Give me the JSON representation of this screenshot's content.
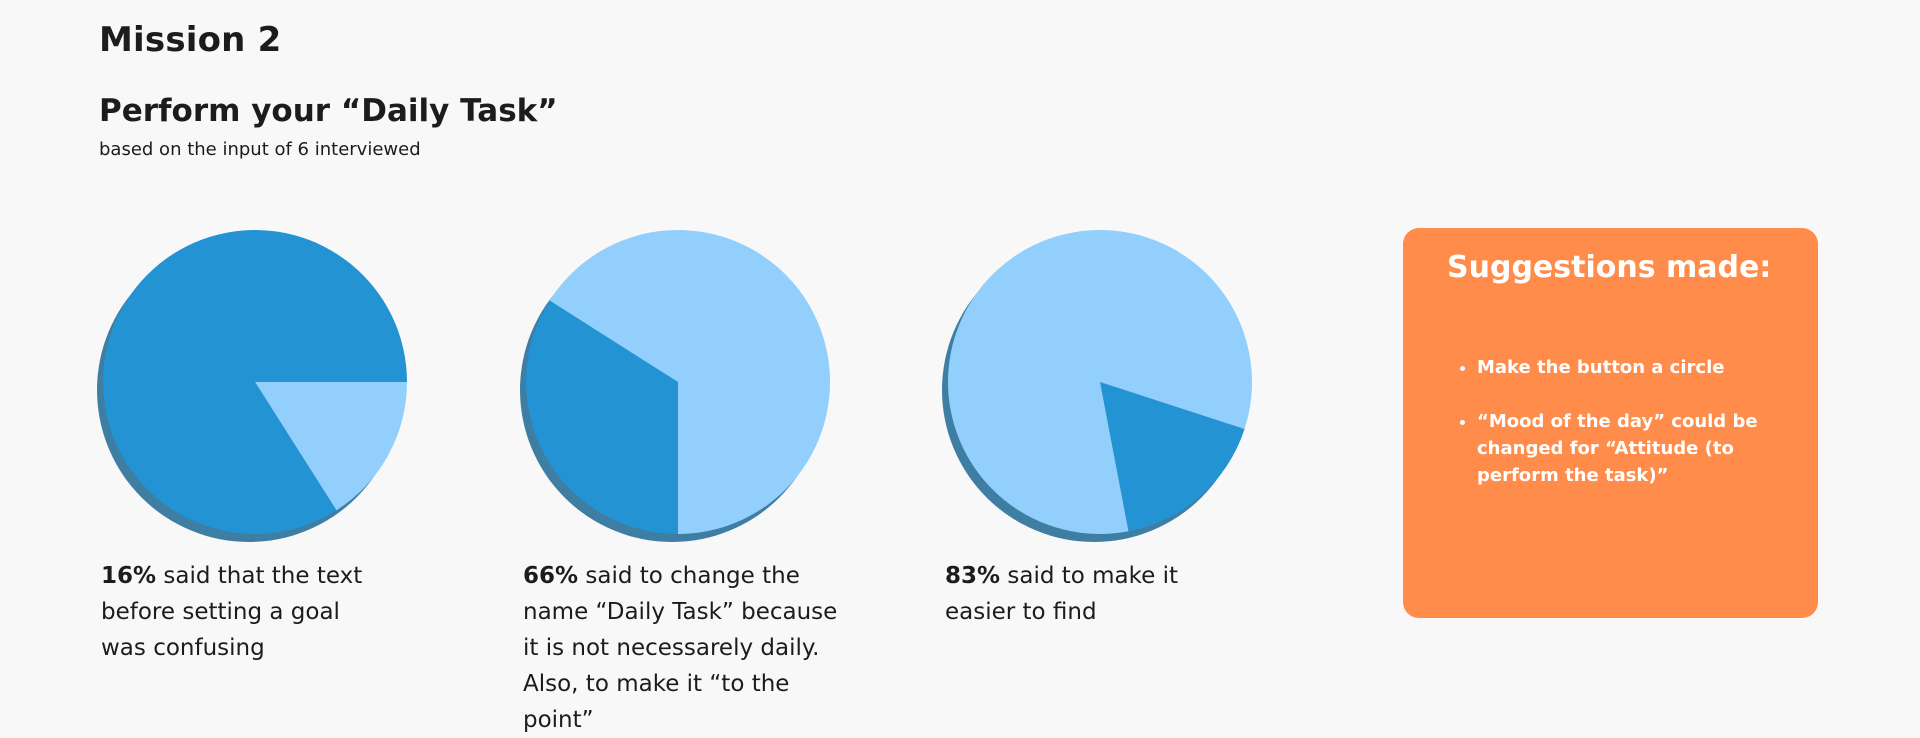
{
  "header": {
    "mission": "Mission 2",
    "section_title": "Perform your “Daily Task”",
    "subtitle": "based on the input of 6 interviewed"
  },
  "colors": {
    "primary_slice": "#2393d4",
    "secondary_slice": "#93cffc",
    "shadow": "#3f7ea3",
    "card": "#ff8c4a"
  },
  "chart_data": [
    {
      "type": "pie",
      "slices": [
        {
          "value": 16,
          "color": "#93cffc"
        },
        {
          "value": 84,
          "color": "#2393d4"
        }
      ]
    },
    {
      "type": "pie",
      "slices": [
        {
          "value": 34,
          "color": "#2393d4"
        },
        {
          "value": 66,
          "color": "#93cffc"
        }
      ]
    },
    {
      "type": "pie",
      "slices": [
        {
          "value": 17,
          "color": "#2393d4"
        },
        {
          "value": 83,
          "color": "#93cffc"
        }
      ]
    }
  ],
  "descriptions": [
    {
      "pct": "16%",
      "text": " said that the text before setting a goal was confusing"
    },
    {
      "pct": "66%",
      "text": " said to change the name “Daily Task” because it is not necessarely daily. Also, to make it “to the point”"
    },
    {
      "pct": "83%",
      "text": " said to make it easier to find"
    }
  ],
  "suggestions": {
    "title": "Suggestions made:",
    "items": [
      "Make the button a circle",
      "“Mood of the day” could be changed for “Attitude (to perform the task)”"
    ]
  }
}
